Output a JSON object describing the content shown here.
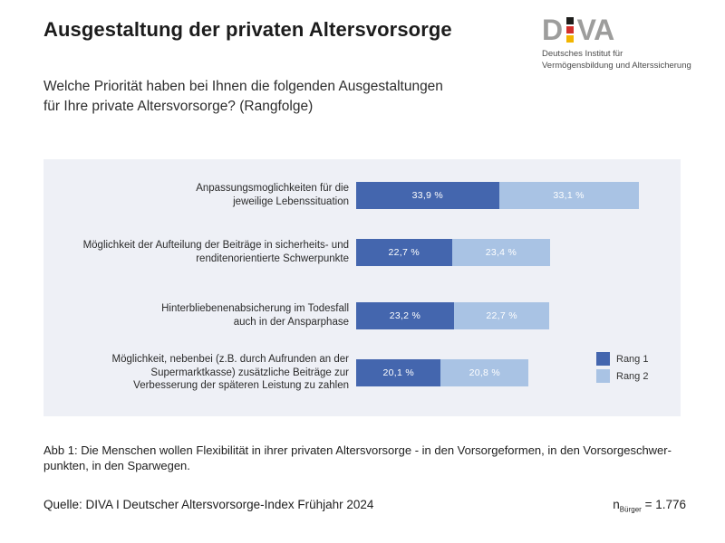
{
  "header": {
    "title": "Ausgestaltung der privaten Altersvorsorge",
    "subtitle": [
      "Welche Priorität haben bei Ihnen die folgenden Ausgestaltungen",
      "für Ihre private Altersvorsorge? (Rangfolge)"
    ]
  },
  "logo": {
    "d": "D",
    "va": "VA",
    "letter_color": "#9d9d9c",
    "flag_colors": [
      "#1d1d1b",
      "#d2302c",
      "#f2b500"
    ],
    "tagline": [
      "Deutsches Institut für",
      "Vermögensbildung und Alterssicherung"
    ]
  },
  "chart_data": {
    "type": "bar",
    "orientation": "horizontal",
    "stacked": true,
    "unit": "%",
    "title": "",
    "xlabel": "",
    "ylabel": "",
    "xlim": [
      0,
      77
    ],
    "grid": false,
    "panel_background": "#eef0f6",
    "value_label_color": "#ffffff",
    "categories": [
      [
        "Anpassungsmoglichkeiten für die",
        "jeweilige Lebenssituation"
      ],
      [
        "Möglichkeit der Aufteilung der Beiträge in sicherheits- und",
        "renditenorientierte Schwerpunkte"
      ],
      [
        "Hinterbliebenenabsicherung im Todesfall",
        "auch in der Ansparphase"
      ],
      [
        "Möglichkeit, nebenbei (z.B. durch Aufrunden an der",
        "Supermarktkasse) zusätzliche Beiträge zur",
        "Verbesserung der späteren Leistung zu zahlen"
      ]
    ],
    "series": [
      {
        "name": "Rang 1",
        "color": "#4466ae",
        "values": [
          33.9,
          22.7,
          23.2,
          20.1
        ],
        "value_labels": [
          "33,9 %",
          "22,7 %",
          "23,2 %",
          "20,1 %"
        ]
      },
      {
        "name": "Rang 2",
        "color": "#a9c3e4",
        "values": [
          33.1,
          23.4,
          22.7,
          20.8
        ],
        "value_labels": [
          "33,1 %",
          "23,4 %",
          "22,7 %",
          "20,8 %"
        ]
      }
    ],
    "legend": {
      "position": "right",
      "entries": [
        "Rang 1",
        "Rang 2"
      ]
    }
  },
  "caption": [
    "Abb 1: Die Menschen wollen Flexibilität in ihrer privaten Altersvorsorge - in den Vorsorgeformen, in den Vorsorgeschwer-",
    "punkten, in den Sparwegen."
  ],
  "source": {
    "text": "Quelle: DIVA I Deutscher Altersvorsorge-Index Frühjahr 2024",
    "n_symbol": "n",
    "n_subscript": "Bürger",
    "n_value": "= 1.776"
  }
}
